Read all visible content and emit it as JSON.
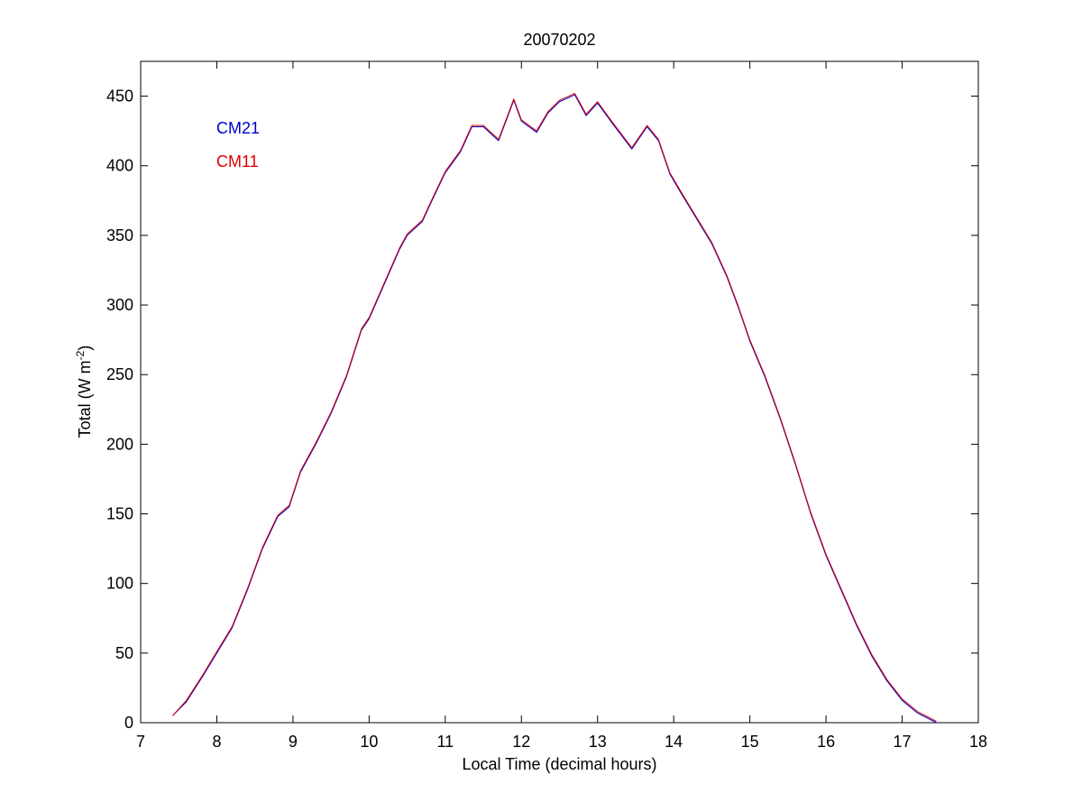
{
  "chart_data": {
    "type": "line",
    "title": "20070202",
    "xlabel": "Local Time (decimal hours)",
    "ylabel_base": "Total (W m",
    "ylabel_sup": "-2",
    "ylabel_end": ")",
    "xlim": [
      7,
      18
    ],
    "ylim": [
      0,
      475
    ],
    "xticks": [
      7,
      8,
      9,
      10,
      11,
      12,
      13,
      14,
      15,
      16,
      17,
      18
    ],
    "yticks": [
      0,
      50,
      100,
      150,
      200,
      250,
      300,
      350,
      400,
      450
    ],
    "grid": false,
    "legend_position": "top-left",
    "series": [
      {
        "name": "CM21",
        "color": "#0000cc",
        "x": [
          7.42,
          7.6,
          7.8,
          8.0,
          8.2,
          8.4,
          8.6,
          8.8,
          8.95,
          9.1,
          9.3,
          9.5,
          9.7,
          9.9,
          10.0,
          10.2,
          10.4,
          10.5,
          10.7,
          10.8,
          11.0,
          11.2,
          11.35,
          11.5,
          11.7,
          11.9,
          12.0,
          12.2,
          12.35,
          12.5,
          12.7,
          12.85,
          13.0,
          13.2,
          13.45,
          13.65,
          13.8,
          13.95,
          14.1,
          14.3,
          14.5,
          14.7,
          14.85,
          15.0,
          15.2,
          15.4,
          15.6,
          15.8,
          16.0,
          16.2,
          16.4,
          16.6,
          16.8,
          17.0,
          17.2,
          17.45
        ],
        "values": [
          5,
          15,
          32,
          50,
          68,
          95,
          125,
          148,
          155,
          180,
          200,
          222,
          248,
          282,
          290,
          315,
          340,
          350,
          360,
          372,
          395,
          410,
          428,
          428,
          418,
          447,
          432,
          424,
          438,
          446,
          451,
          436,
          445,
          430,
          412,
          428,
          418,
          394,
          380,
          362,
          344,
          320,
          298,
          274,
          248,
          218,
          185,
          150,
          120,
          95,
          70,
          48,
          30,
          16,
          7,
          0
        ]
      },
      {
        "name": "CM11",
        "color": "#dd0000",
        "x": [
          7.42,
          7.6,
          7.8,
          8.0,
          8.2,
          8.4,
          8.6,
          8.8,
          8.95,
          9.1,
          9.3,
          9.5,
          9.7,
          9.9,
          10.0,
          10.2,
          10.4,
          10.5,
          10.7,
          10.8,
          11.0,
          11.2,
          11.35,
          11.5,
          11.7,
          11.9,
          12.0,
          12.2,
          12.35,
          12.5,
          12.7,
          12.85,
          13.0,
          13.2,
          13.45,
          13.65,
          13.8,
          13.95,
          14.1,
          14.3,
          14.5,
          14.7,
          14.85,
          15.0,
          15.2,
          15.4,
          15.6,
          15.8,
          16.0,
          16.2,
          16.4,
          16.6,
          16.8,
          17.0,
          17.2,
          17.45
        ],
        "values": [
          5,
          16,
          33,
          51,
          69,
          96,
          126,
          149,
          156,
          181,
          201,
          223,
          249,
          283,
          291,
          316,
          341,
          351,
          361,
          373,
          396,
          411,
          429,
          429,
          419,
          448,
          433,
          425,
          439,
          447,
          452,
          437,
          446,
          431,
          413,
          429,
          419,
          395,
          381,
          363,
          345,
          321,
          299,
          275,
          249,
          219,
          186,
          151,
          121,
          96,
          71,
          49,
          31,
          17,
          8,
          1
        ]
      }
    ]
  }
}
